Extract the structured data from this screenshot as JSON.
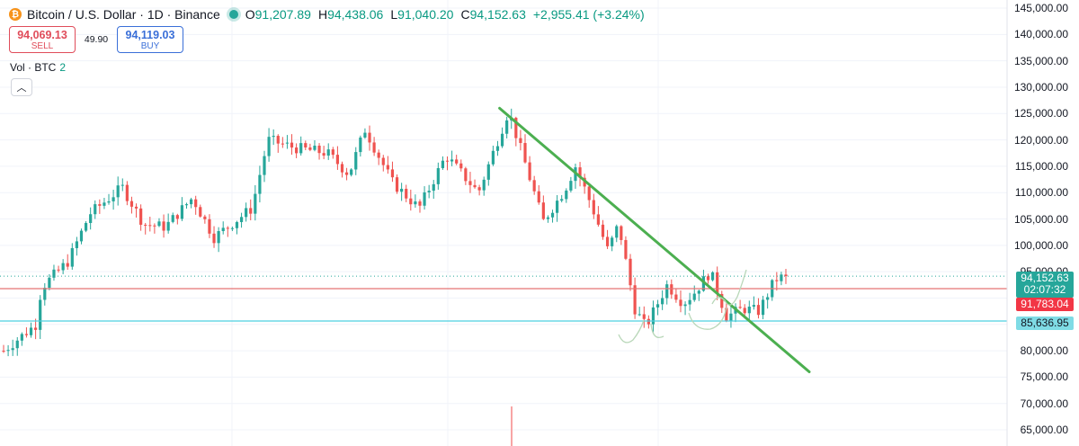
{
  "header": {
    "title": "Bitcoin / U.S. Dollar · 1D · Binance",
    "ohlc": {
      "open_label": "O",
      "open": "91,207.89",
      "high_label": "H",
      "high": "94,438.06",
      "low_label": "L",
      "low": "91,040.20",
      "close_label": "C",
      "close": "94,152.63",
      "change": "+2,955.41 (+3.24%)"
    }
  },
  "trade": {
    "sell_price": "94,069.13",
    "sell_label": "SELL",
    "spread": "49.90",
    "buy_price": "94,119.03",
    "buy_label": "BUY"
  },
  "volume_indicator": {
    "label": "Vol · BTC",
    "value": "2"
  },
  "price_axis": {
    "ticks": [
      "145,000.00",
      "140,000.00",
      "135,000.00",
      "130,000.00",
      "125,000.00",
      "120,000.00",
      "115,000.00",
      "110,000.00",
      "105,000.00",
      "100,000.00",
      "95,000.00",
      "90,000.00",
      "85,000.00",
      "80,000.00",
      "75,000.00",
      "70,000.00",
      "65,000.00"
    ],
    "current_price": "94,152.63",
    "countdown": "02:07:32",
    "red_level": "91,783.04",
    "cyan_level": "85,636.95"
  },
  "colors": {
    "up": "#26a69a",
    "down": "#ef5350",
    "trendline": "#4caf50",
    "red_line": "#e57373",
    "cyan_line": "#4dd0e1"
  },
  "chart_data": {
    "type": "candlestick",
    "title": "Bitcoin / U.S. Dollar · 1D · Binance",
    "ylim": [
      62000,
      146000
    ],
    "ticks": [
      145000,
      140000,
      135000,
      130000,
      125000,
      120000,
      115000,
      110000,
      105000,
      100000,
      95000,
      90000,
      85000,
      80000,
      75000,
      70000,
      65000
    ],
    "horizontal_levels": [
      {
        "value": 94152.63,
        "style": "dotted"
      },
      {
        "value": 91783.04,
        "style": "solid"
      },
      {
        "value": 85636.95,
        "style": "solid"
      }
    ],
    "trendline": {
      "from": [
        0.463,
        126000
      ],
      "to": [
        0.75,
        76000
      ]
    },
    "waypoints": [
      [
        0.0,
        80000
      ],
      [
        0.03,
        85000
      ],
      [
        0.035,
        92000
      ],
      [
        0.06,
        97000
      ],
      [
        0.08,
        106000
      ],
      [
        0.11,
        111000
      ],
      [
        0.13,
        104000
      ],
      [
        0.15,
        103500
      ],
      [
        0.175,
        109000
      ],
      [
        0.195,
        101500
      ],
      [
        0.23,
        107000
      ],
      [
        0.245,
        120000
      ],
      [
        0.27,
        118500
      ],
      [
        0.3,
        117500
      ],
      [
        0.32,
        113500
      ],
      [
        0.335,
        122000
      ],
      [
        0.36,
        112000
      ],
      [
        0.385,
        107000
      ],
      [
        0.41,
        117000
      ],
      [
        0.44,
        110000
      ],
      [
        0.468,
        125500
      ],
      [
        0.485,
        114500
      ],
      [
        0.5,
        104500
      ],
      [
        0.52,
        110500
      ],
      [
        0.53,
        115000
      ],
      [
        0.545,
        107500
      ],
      [
        0.56,
        99000
      ],
      [
        0.57,
        104000
      ],
      [
        0.585,
        88000
      ],
      [
        0.595,
        84500
      ],
      [
        0.615,
        92500
      ],
      [
        0.63,
        89000
      ],
      [
        0.64,
        91000
      ],
      [
        0.655,
        95000
      ],
      [
        0.67,
        86500
      ],
      [
        0.685,
        88000
      ],
      [
        0.7,
        87500
      ],
      [
        0.715,
        93500
      ],
      [
        0.725,
        94152.63
      ]
    ]
  }
}
